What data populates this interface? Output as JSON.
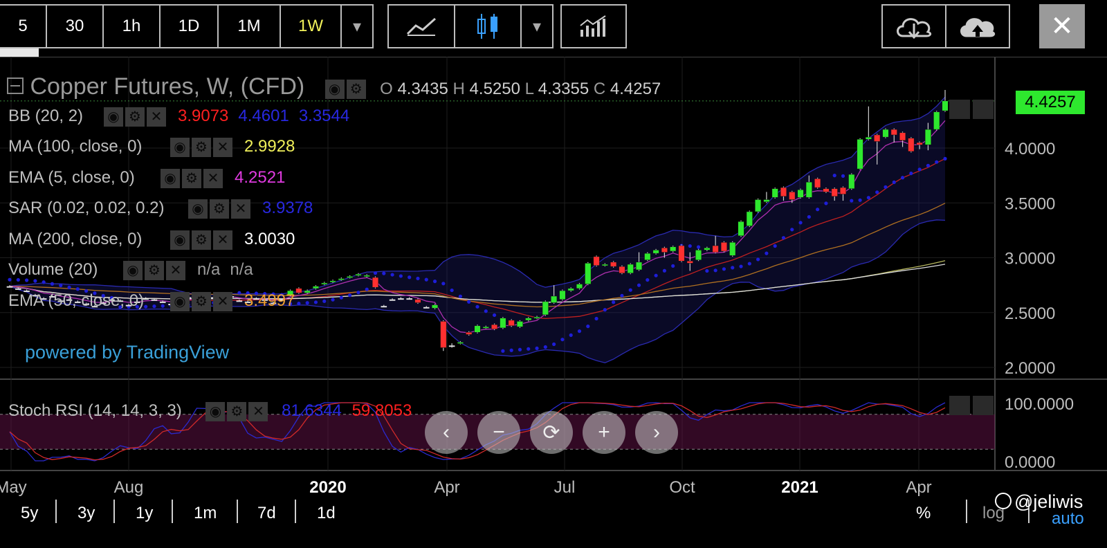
{
  "toolbar": {
    "intervals": [
      "5",
      "30",
      "1h",
      "1D",
      "1M",
      "1W"
    ],
    "active_interval": "1W",
    "dropdown_glyph": "▾",
    "chart_type_icons": [
      "line-chart-icon",
      "candlestick-icon",
      "indicators-icon"
    ],
    "cloud_icons": [
      "cloud-download-icon",
      "cloud-upload-icon"
    ],
    "close_glyph": "✕"
  },
  "legend": {
    "title": "Copper Futures, W, (CFD)",
    "ohlc": {
      "o_label": "O",
      "o": "4.3435",
      "h_label": "H",
      "h": "4.5250",
      "l_label": "L",
      "l": "4.3355",
      "c_label": "C",
      "c": "4.4257"
    },
    "indicators": [
      {
        "name": "BB (20, 2)",
        "values": [
          "3.9073",
          "4.4601",
          "3.3544"
        ],
        "colors": [
          "#ff2020",
          "#2828e0",
          "#2828e0"
        ]
      },
      {
        "name": "MA (100, close, 0)",
        "values": [
          "2.9928"
        ],
        "colors": [
          "#f0f05a"
        ]
      },
      {
        "name": "EMA (5, close, 0)",
        "values": [
          "4.2521"
        ],
        "colors": [
          "#e03ae0"
        ]
      },
      {
        "name": "SAR (0.02, 0.02, 0.2)",
        "values": [
          "3.9378"
        ],
        "colors": [
          "#2828e0"
        ]
      },
      {
        "name": "MA (200, close, 0)",
        "values": [
          "3.0030"
        ],
        "colors": [
          "#ffffff"
        ]
      },
      {
        "name": "Volume (20)",
        "values": [
          "n/a",
          "n/a"
        ],
        "colors": [
          "#9a9a9a",
          "#9a9a9a"
        ]
      },
      {
        "name": "EMA (50, close, 0)",
        "values": [
          "3.4997"
        ],
        "colors": [
          "#f0a030"
        ]
      }
    ],
    "powered_by": "powered by TradingView"
  },
  "price_tag": "4.4257",
  "stoch": {
    "name": "Stoch RSI (14, 14, 3, 3)",
    "k": "81.6344",
    "d": "59.8053",
    "scale": [
      "100.0000",
      "0.0000"
    ]
  },
  "nav_buttons": [
    "‹",
    "−",
    "⟳",
    "+",
    "›"
  ],
  "bottom": {
    "ranges": [
      "5y",
      "3y",
      "1y",
      "1m",
      "7d",
      "1d"
    ],
    "right": [
      "%",
      "log",
      "auto"
    ],
    "watermark": "@jeliwis"
  },
  "chart_data": {
    "type": "candlestick",
    "ylim": [
      1.9,
      4.65
    ],
    "y_ticks": [
      2.0,
      2.5,
      3.0,
      3.5,
      4.0
    ],
    "y_tick_labels": [
      "2.0000",
      "2.5000",
      "3.0000",
      "3.5000",
      "4.0000"
    ],
    "x_tick_labels": [
      "May",
      "Aug",
      "2020",
      "Apr",
      "Jul",
      "Oct",
      "2021",
      "Apr"
    ],
    "candles": [
      {
        "o": 2.74,
        "c": 2.74,
        "h": 2.75,
        "l": 2.73
      },
      {
        "o": 2.72,
        "c": 2.72,
        "h": 2.73,
        "l": 2.71
      },
      {
        "o": 2.7,
        "c": 2.7,
        "h": 2.71,
        "l": 2.69
      },
      {
        "o": 2.66,
        "c": 2.66,
        "h": 2.67,
        "l": 2.65
      },
      {
        "o": 2.63,
        "c": 2.63,
        "h": 2.64,
        "l": 2.62
      },
      {
        "o": 2.65,
        "c": 2.65,
        "h": 2.66,
        "l": 2.64
      },
      {
        "o": 2.61,
        "c": 2.61,
        "h": 2.62,
        "l": 2.6
      },
      {
        "o": 2.62,
        "c": 2.62,
        "h": 2.63,
        "l": 2.61
      },
      {
        "o": 2.6,
        "c": 2.6,
        "h": 2.61,
        "l": 2.59
      },
      {
        "o": 2.58,
        "c": 2.58,
        "h": 2.59,
        "l": 2.57
      },
      {
        "o": 2.56,
        "c": 2.56,
        "h": 2.57,
        "l": 2.55
      },
      {
        "o": 2.59,
        "c": 2.59,
        "h": 2.6,
        "l": 2.58
      },
      {
        "o": 2.62,
        "c": 2.62,
        "h": 2.63,
        "l": 2.61
      },
      {
        "o": 2.61,
        "c": 2.61,
        "h": 2.62,
        "l": 2.6
      },
      {
        "o": 2.57,
        "c": 2.57,
        "h": 2.58,
        "l": 2.56
      },
      {
        "o": 2.6,
        "c": 2.6,
        "h": 2.61,
        "l": 2.59
      },
      {
        "o": 2.63,
        "c": 2.63,
        "h": 2.64,
        "l": 2.62
      },
      {
        "o": 2.62,
        "c": 2.62,
        "h": 2.63,
        "l": 2.61
      },
      {
        "o": 2.6,
        "c": 2.6,
        "h": 2.61,
        "l": 2.59
      },
      {
        "o": 2.58,
        "c": 2.58,
        "h": 2.59,
        "l": 2.57
      },
      {
        "o": 2.61,
        "c": 2.61,
        "h": 2.62,
        "l": 2.6
      },
      {
        "o": 2.64,
        "c": 2.64,
        "h": 2.65,
        "l": 2.63
      },
      {
        "o": 2.66,
        "c": 2.66,
        "h": 2.67,
        "l": 2.65
      },
      {
        "o": 2.63,
        "c": 2.63,
        "h": 2.64,
        "l": 2.62
      },
      {
        "o": 2.64,
        "c": 2.64,
        "h": 2.65,
        "l": 2.63
      },
      {
        "o": 2.67,
        "c": 2.67,
        "h": 2.68,
        "l": 2.66
      },
      {
        "o": 2.65,
        "c": 2.65,
        "h": 2.66,
        "l": 2.64
      },
      {
        "o": 2.61,
        "c": 2.61,
        "h": 2.62,
        "l": 2.6
      },
      {
        "o": 2.6,
        "c": 2.6,
        "h": 2.61,
        "l": 2.59
      },
      {
        "o": 2.63,
        "c": 2.63,
        "h": 2.64,
        "l": 2.62
      },
      {
        "o": 2.62,
        "c": 2.62,
        "h": 2.63,
        "l": 2.61
      },
      {
        "o": 2.59,
        "c": 2.59,
        "h": 2.6,
        "l": 2.58
      },
      {
        "o": 2.62,
        "c": 2.62,
        "h": 2.63,
        "l": 2.61
      },
      {
        "o": 2.66,
        "c": 2.7,
        "h": 2.71,
        "l": 2.65
      },
      {
        "o": 2.72,
        "c": 2.68,
        "h": 2.73,
        "l": 2.67
      },
      {
        "o": 2.68,
        "c": 2.7,
        "h": 2.71,
        "l": 2.67
      },
      {
        "o": 2.72,
        "c": 2.74,
        "h": 2.75,
        "l": 2.71
      },
      {
        "o": 2.76,
        "c": 2.77,
        "h": 2.78,
        "l": 2.75
      },
      {
        "o": 2.78,
        "c": 2.79,
        "h": 2.8,
        "l": 2.77
      },
      {
        "o": 2.8,
        "c": 2.81,
        "h": 2.82,
        "l": 2.79
      },
      {
        "o": 2.82,
        "c": 2.83,
        "h": 2.84,
        "l": 2.81
      },
      {
        "o": 2.84,
        "c": 2.85,
        "h": 2.86,
        "l": 2.83
      },
      {
        "o": 2.83,
        "c": 2.84,
        "h": 2.85,
        "l": 2.82
      },
      {
        "o": 2.82,
        "c": 2.73,
        "h": 2.83,
        "l": 2.72
      },
      {
        "o": 2.56,
        "c": 2.56,
        "h": 2.57,
        "l": 2.55
      },
      {
        "o": 2.62,
        "c": 2.62,
        "h": 2.63,
        "l": 2.61
      },
      {
        "o": 2.63,
        "c": 2.63,
        "h": 2.64,
        "l": 2.62
      },
      {
        "o": 2.63,
        "c": 2.63,
        "h": 2.64,
        "l": 2.62
      },
      {
        "o": 2.62,
        "c": 2.59,
        "h": 2.63,
        "l": 2.58
      },
      {
        "o": 2.55,
        "c": 2.55,
        "h": 2.56,
        "l": 2.54
      },
      {
        "o": 2.54,
        "c": 2.57,
        "h": 2.58,
        "l": 2.53
      },
      {
        "o": 2.42,
        "c": 2.18,
        "h": 2.43,
        "l": 2.15
      },
      {
        "o": 2.2,
        "c": 2.2,
        "h": 2.22,
        "l": 2.18
      },
      {
        "o": 2.22,
        "c": 2.23,
        "h": 2.24,
        "l": 2.21
      },
      {
        "o": 2.32,
        "c": 2.3,
        "h": 2.33,
        "l": 2.29
      },
      {
        "o": 2.32,
        "c": 2.38,
        "h": 2.39,
        "l": 2.31
      },
      {
        "o": 2.36,
        "c": 2.37,
        "h": 2.38,
        "l": 2.35
      },
      {
        "o": 2.39,
        "c": 2.35,
        "h": 2.4,
        "l": 2.34
      },
      {
        "o": 2.36,
        "c": 2.45,
        "h": 2.46,
        "l": 2.35
      },
      {
        "o": 2.43,
        "c": 2.38,
        "h": 2.44,
        "l": 2.37
      },
      {
        "o": 2.37,
        "c": 2.42,
        "h": 2.43,
        "l": 2.36
      },
      {
        "o": 2.43,
        "c": 2.45,
        "h": 2.46,
        "l": 2.42
      },
      {
        "o": 2.45,
        "c": 2.46,
        "h": 2.47,
        "l": 2.44
      },
      {
        "o": 2.48,
        "c": 2.6,
        "h": 2.61,
        "l": 2.47
      },
      {
        "o": 2.59,
        "c": 2.65,
        "h": 2.75,
        "l": 2.58
      },
      {
        "o": 2.62,
        "c": 2.7,
        "h": 2.71,
        "l": 2.61
      },
      {
        "o": 2.7,
        "c": 2.72,
        "h": 2.73,
        "l": 2.69
      },
      {
        "o": 2.72,
        "c": 2.76,
        "h": 2.77,
        "l": 2.71
      },
      {
        "o": 2.76,
        "c": 2.95,
        "h": 2.96,
        "l": 2.75
      },
      {
        "o": 3.01,
        "c": 2.93,
        "h": 3.02,
        "l": 2.92
      },
      {
        "o": 2.93,
        "c": 2.94,
        "h": 2.95,
        "l": 2.92
      },
      {
        "o": 2.96,
        "c": 2.92,
        "h": 2.97,
        "l": 2.91
      },
      {
        "o": 2.92,
        "c": 2.86,
        "h": 2.93,
        "l": 2.85
      },
      {
        "o": 2.86,
        "c": 2.94,
        "h": 2.95,
        "l": 2.85
      },
      {
        "o": 2.89,
        "c": 2.96,
        "h": 3.05,
        "l": 2.88
      },
      {
        "o": 2.98,
        "c": 3.04,
        "h": 3.05,
        "l": 2.97
      },
      {
        "o": 3.04,
        "c": 3.07,
        "h": 3.08,
        "l": 3.03
      },
      {
        "o": 3.09,
        "c": 3.05,
        "h": 3.1,
        "l": 3.0
      },
      {
        "o": 3.06,
        "c": 3.1,
        "h": 3.11,
        "l": 3.05
      },
      {
        "o": 3.11,
        "c": 2.97,
        "h": 3.12,
        "l": 2.96
      },
      {
        "o": 2.97,
        "c": 2.95,
        "h": 3.05,
        "l": 2.88
      },
      {
        "o": 2.98,
        "c": 3.07,
        "h": 3.08,
        "l": 2.97
      },
      {
        "o": 3.07,
        "c": 3.09,
        "h": 3.1,
        "l": 3.06
      },
      {
        "o": 3.11,
        "c": 3.05,
        "h": 3.2,
        "l": 3.04
      },
      {
        "o": 3.14,
        "c": 3.06,
        "h": 3.15,
        "l": 3.05
      },
      {
        "o": 3.02,
        "c": 3.14,
        "h": 3.15,
        "l": 3.01
      },
      {
        "o": 3.2,
        "c": 3.33,
        "h": 3.34,
        "l": 3.19
      },
      {
        "o": 3.29,
        "c": 3.42,
        "h": 3.43,
        "l": 3.28
      },
      {
        "o": 3.42,
        "c": 3.53,
        "h": 3.54,
        "l": 3.41
      },
      {
        "o": 3.51,
        "c": 3.53,
        "h": 3.6,
        "l": 3.5
      },
      {
        "o": 3.55,
        "c": 3.63,
        "h": 3.64,
        "l": 3.54
      },
      {
        "o": 3.64,
        "c": 3.56,
        "h": 3.65,
        "l": 3.52
      },
      {
        "o": 3.6,
        "c": 3.53,
        "h": 3.61,
        "l": 3.5
      },
      {
        "o": 3.55,
        "c": 3.62,
        "h": 3.63,
        "l": 3.54
      },
      {
        "o": 3.55,
        "c": 3.69,
        "h": 3.75,
        "l": 3.54
      },
      {
        "o": 3.72,
        "c": 3.64,
        "h": 3.73,
        "l": 3.63
      },
      {
        "o": 3.63,
        "c": 3.6,
        "h": 3.64,
        "l": 3.59
      },
      {
        "o": 3.63,
        "c": 3.56,
        "h": 3.64,
        "l": 3.52
      },
      {
        "o": 3.64,
        "c": 3.58,
        "h": 3.65,
        "l": 3.52
      },
      {
        "o": 3.63,
        "c": 3.76,
        "h": 3.77,
        "l": 3.62
      },
      {
        "o": 3.81,
        "c": 4.08,
        "h": 4.09,
        "l": 3.8
      },
      {
        "o": 4.08,
        "c": 4.1,
        "h": 4.38,
        "l": 4.07
      },
      {
        "o": 4.12,
        "c": 4.06,
        "h": 4.13,
        "l": 3.85
      },
      {
        "o": 4.1,
        "c": 4.17,
        "h": 4.18,
        "l": 4.09
      },
      {
        "o": 4.17,
        "c": 4.12,
        "h": 4.18,
        "l": 4.05
      },
      {
        "o": 4.14,
        "c": 4.07,
        "h": 4.15,
        "l": 4.01
      },
      {
        "o": 4.09,
        "c": 3.97,
        "h": 4.1,
        "l": 3.96
      },
      {
        "o": 4.05,
        "c": 4.03,
        "h": 4.06,
        "l": 3.99
      },
      {
        "o": 4.03,
        "c": 4.17,
        "h": 4.23,
        "l": 3.98
      },
      {
        "o": 4.17,
        "c": 4.33,
        "h": 4.34,
        "l": 4.16
      },
      {
        "o": 4.34,
        "c": 4.43,
        "h": 4.53,
        "l": 4.33
      }
    ],
    "stoch_levels": [
      80,
      20
    ]
  }
}
